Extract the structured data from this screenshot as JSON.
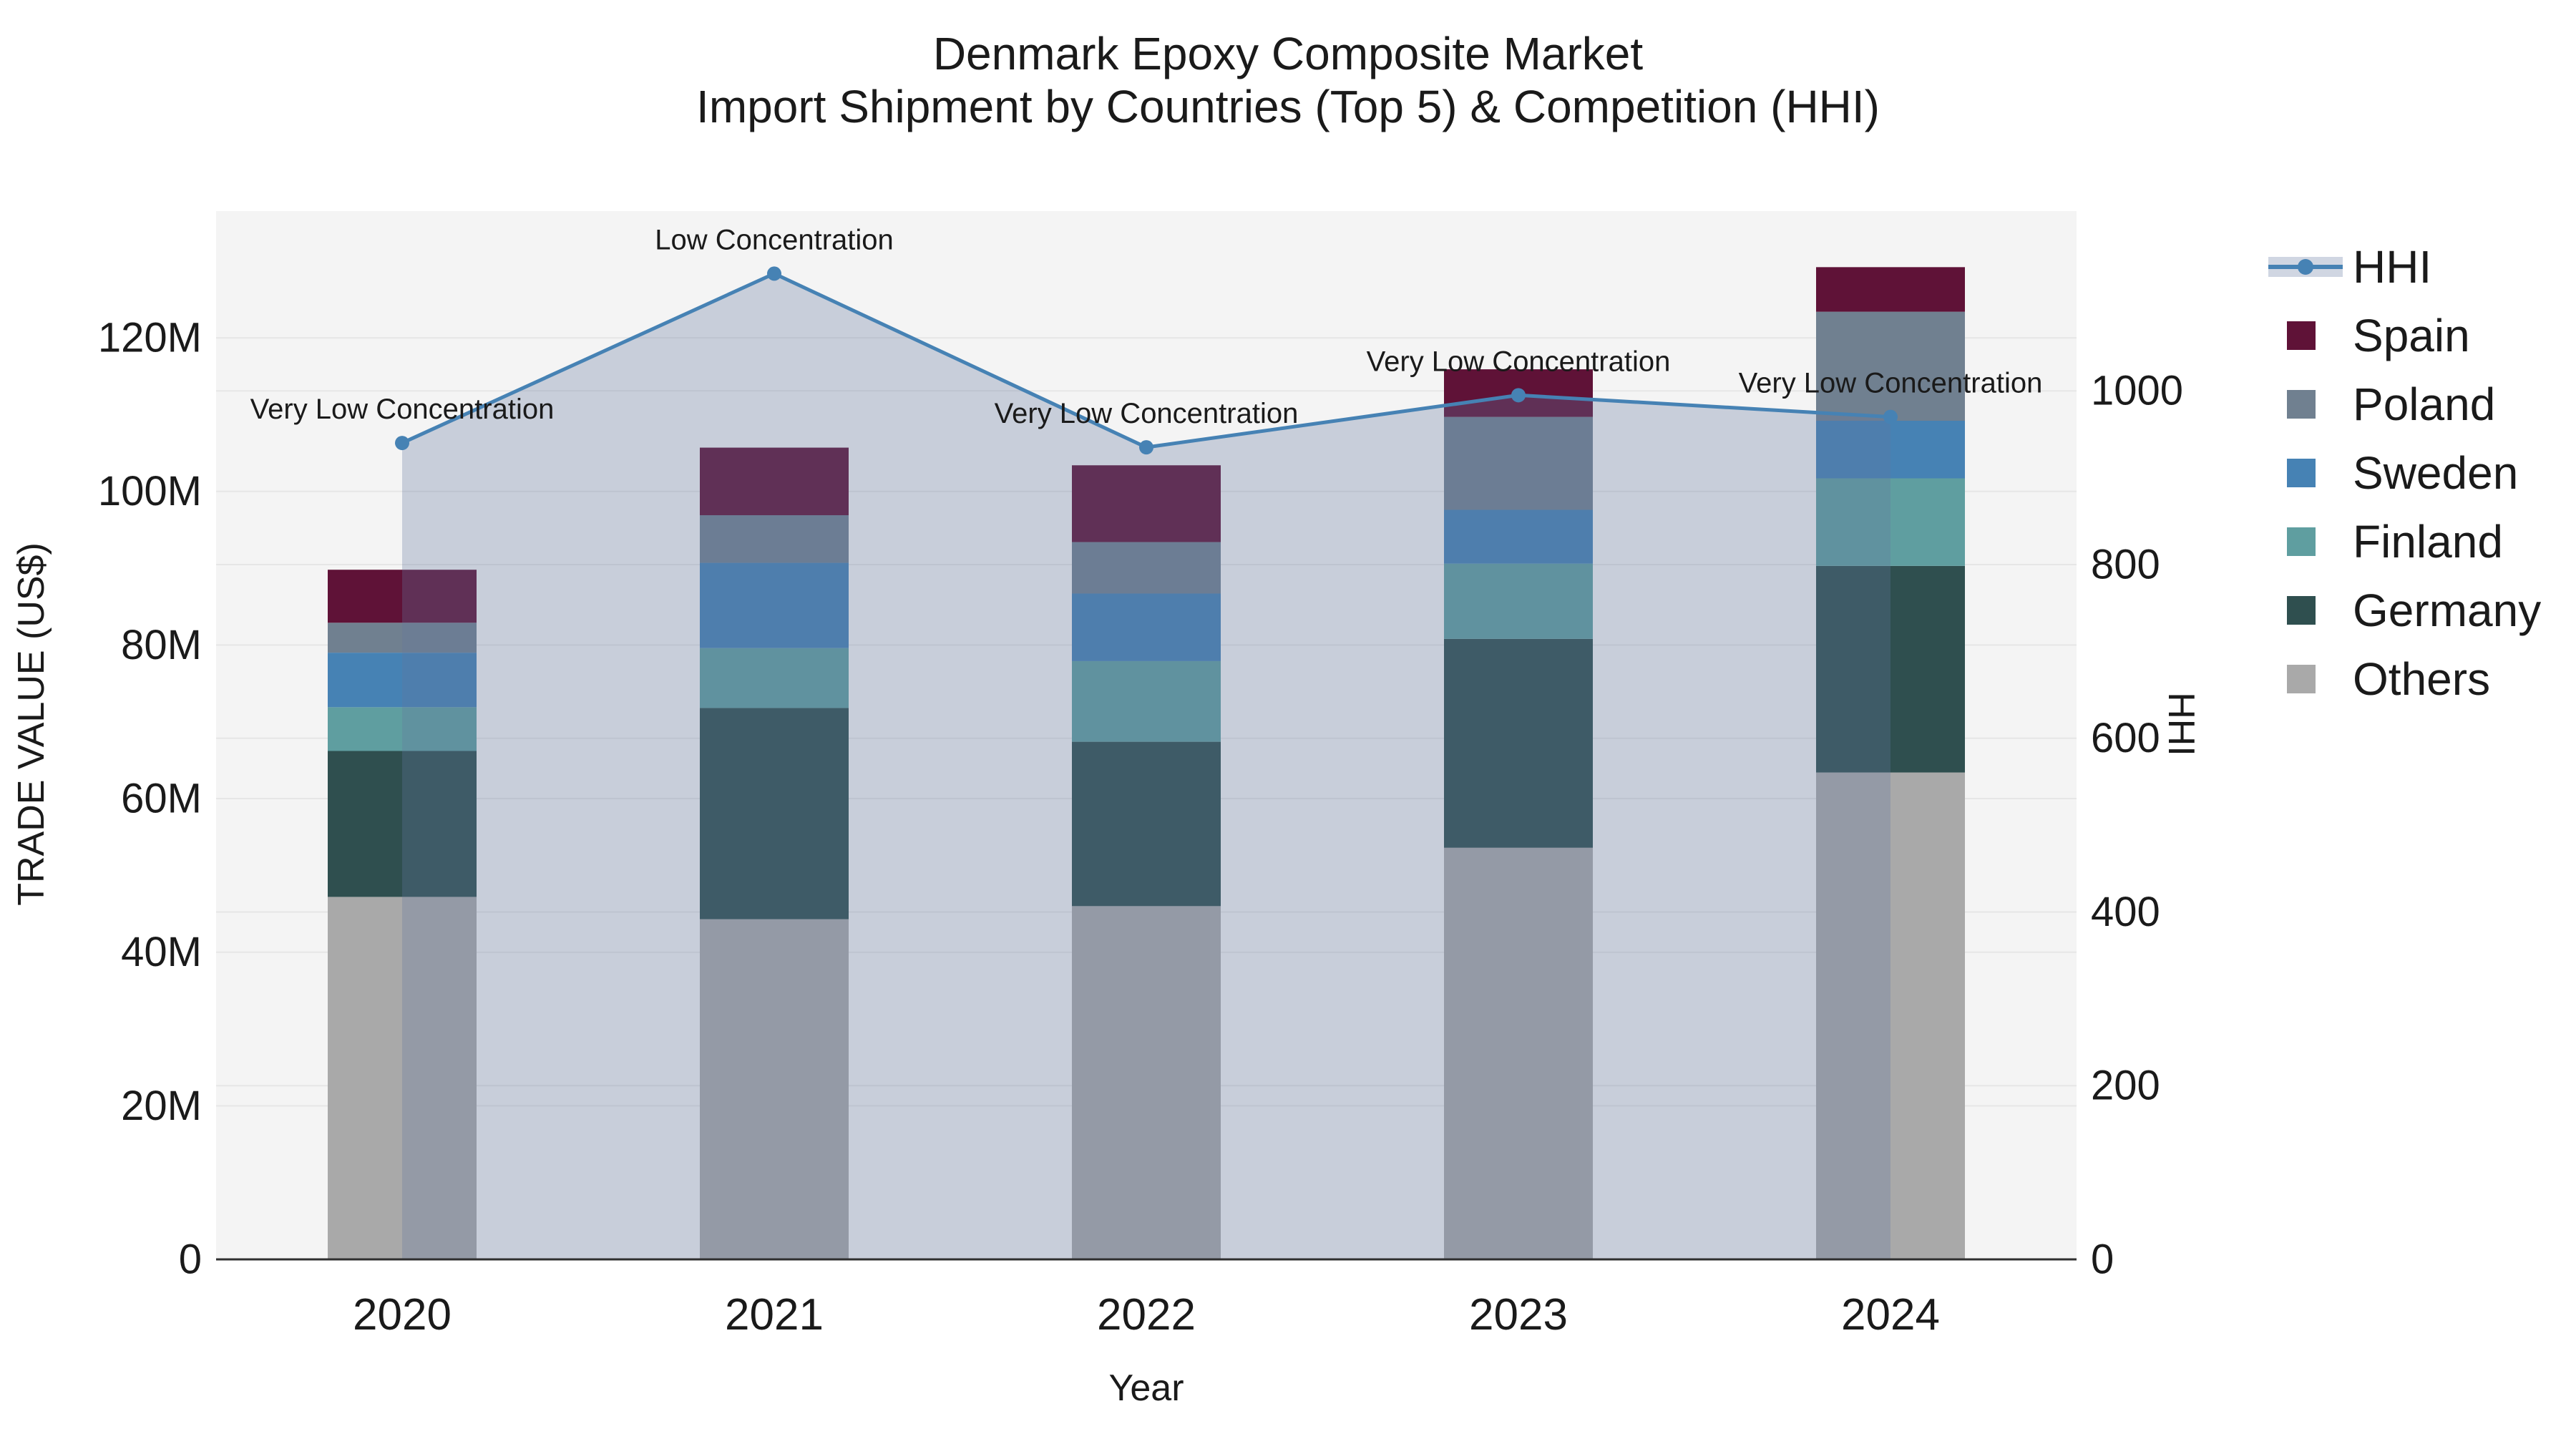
{
  "title": {
    "line1": "Denmark Epoxy Composite Market",
    "line2": "Import Shipment by Countries (Top 5) & Competition (HHI)"
  },
  "axes": {
    "x": {
      "title": "Year",
      "ticks": [
        "2020",
        "2021",
        "2022",
        "2023",
        "2024"
      ]
    },
    "left": {
      "title": "TRADE VALUE (US$)",
      "ticks": [
        {
          "value": 0,
          "label": "0"
        },
        {
          "value": 20,
          "label": "20M"
        },
        {
          "value": 40,
          "label": "40M"
        },
        {
          "value": 60,
          "label": "60M"
        },
        {
          "value": 80,
          "label": "80M"
        },
        {
          "value": 100,
          "label": "100M"
        },
        {
          "value": 120,
          "label": "120M"
        }
      ]
    },
    "right": {
      "title": "HHI",
      "ticks": [
        {
          "value": 0,
          "label": "0"
        },
        {
          "value": 200,
          "label": "200"
        },
        {
          "value": 400,
          "label": "400"
        },
        {
          "value": 600,
          "label": "600"
        },
        {
          "value": 800,
          "label": "800"
        },
        {
          "value": 1000,
          "label": "1000"
        }
      ]
    }
  },
  "legend": {
    "items": [
      {
        "label": "HHI",
        "swatch": "line",
        "color": "#4682B4"
      },
      {
        "label": "Spain",
        "swatch": "square",
        "color": "#5F1237"
      },
      {
        "label": "Poland",
        "swatch": "square",
        "color": "#708090"
      },
      {
        "label": "Sweden",
        "swatch": "square",
        "color": "#4682B4"
      },
      {
        "label": "Finland",
        "swatch": "square",
        "color": "#5F9EA0"
      },
      {
        "label": "Germany",
        "swatch": "square",
        "color": "#2F4F4F"
      },
      {
        "label": "Others",
        "swatch": "square",
        "color": "#A9A9A9"
      }
    ]
  },
  "annotations": [
    {
      "category": "2020",
      "text": "Very Low Concentration"
    },
    {
      "category": "2021",
      "text": "Low Concentration"
    },
    {
      "category": "2022",
      "text": "Very Low Concentration"
    },
    {
      "category": "2023",
      "text": "Very Low Concentration"
    },
    {
      "category": "2024",
      "text": "Very Low Concentration"
    }
  ],
  "colors": {
    "figure_bg": "#FFFFFF",
    "plot_bg": "#F4F4F4",
    "grid": "#E6E6E6",
    "axis_line": "#2F2F2F",
    "text": "#1a1a1a",
    "hhi_line": "#4682B4",
    "hhi_fill": "rgba(100,120,160,0.30)"
  },
  "chart_data": {
    "type": "bar+line",
    "title": "Denmark Epoxy Composite Market — Import Shipment by Countries (Top 5) & Competition (HHI)",
    "categories": [
      "2020",
      "2021",
      "2022",
      "2023",
      "2024"
    ],
    "series": [
      {
        "name": "Spain",
        "type": "bar",
        "axis": "left",
        "color": "#5F1237",
        "values_musd": [
          6.9,
          8.8,
          10.0,
          6.2,
          5.8
        ]
      },
      {
        "name": "Poland",
        "type": "bar",
        "axis": "left",
        "color": "#708090",
        "values_musd": [
          3.9,
          6.2,
          6.7,
          12.1,
          14.2
        ]
      },
      {
        "name": "Sweden",
        "type": "bar",
        "axis": "left",
        "color": "#4682B4",
        "values_musd": [
          7.1,
          11.1,
          8.8,
          7.0,
          7.5
        ]
      },
      {
        "name": "Finland",
        "type": "bar",
        "axis": "left",
        "color": "#5F9EA0",
        "values_musd": [
          5.7,
          7.8,
          10.5,
          9.8,
          11.4
        ]
      },
      {
        "name": "Germany",
        "type": "bar",
        "axis": "left",
        "color": "#2F4F4F",
        "values_musd": [
          19.0,
          27.5,
          21.4,
          27.2,
          26.9
        ]
      },
      {
        "name": "Others",
        "type": "bar",
        "axis": "left",
        "color": "#A9A9A9",
        "values_musd": [
          47.2,
          44.3,
          46.0,
          53.6,
          63.4
        ]
      }
    ],
    "stack_order_bottom_to_top": [
      "Others",
      "Germany",
      "Finland",
      "Sweden",
      "Poland",
      "Spain"
    ],
    "bar_totals_musd": [
      89.8,
      105.7,
      103.4,
      115.9,
      129.2
    ],
    "hhi": {
      "name": "HHI",
      "type": "line",
      "axis": "right",
      "color": "#4682B4",
      "fill": "rgba(100,120,160,0.30)",
      "values": [
        940,
        1135,
        935,
        995,
        970
      ]
    },
    "xlabel": "Year",
    "ylabel": "TRADE VALUE (US$)",
    "y2label": "HHI",
    "ylim_musd": [
      0,
      136.5
    ],
    "y2lim": [
      0,
      1207
    ],
    "grid": true,
    "legend_position": "right"
  }
}
